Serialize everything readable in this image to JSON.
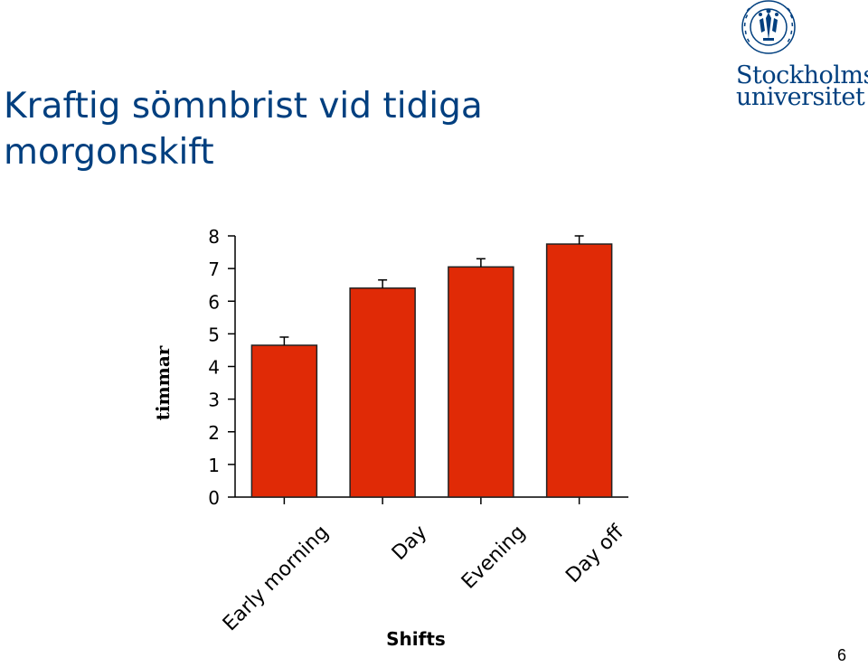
{
  "slide": {
    "title_lines": [
      "Kraftig sömnbrist vid tidiga",
      "morgonskift"
    ],
    "page_number": "6"
  },
  "logo": {
    "name_lines": [
      "Stockholms",
      "universitet"
    ],
    "seal_text": "UNIVERSITET STOCKHOLMS",
    "seal_icon": "university-seal-icon"
  },
  "colors": {
    "title": "#003f7f",
    "bar_fill": "#e02a06",
    "bar_stroke": "#222222",
    "axis": "#000000"
  },
  "chart_data": {
    "type": "bar",
    "categories": [
      "Early morning",
      "Day",
      "Evening",
      "Day off"
    ],
    "values": [
      4.65,
      6.4,
      7.05,
      7.75
    ],
    "errors": [
      0.25,
      0.25,
      0.25,
      0.25
    ],
    "xlabel": "Shifts",
    "ylabel": "timmar",
    "ylim": [
      0,
      8
    ],
    "yticks": [
      0,
      1,
      2,
      3,
      4,
      5,
      6,
      7,
      8
    ],
    "grid": false,
    "legend": "none"
  }
}
